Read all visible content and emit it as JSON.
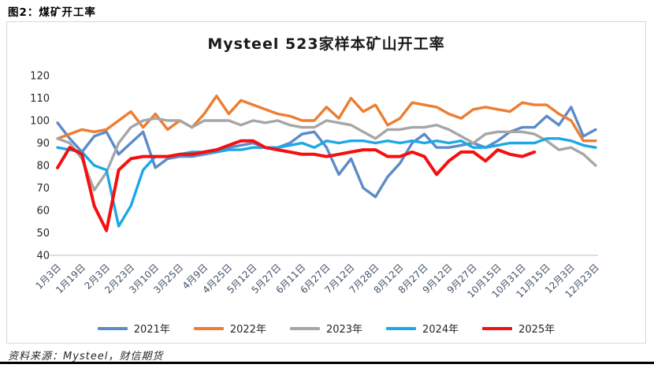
{
  "figure": {
    "caption": "图2：煤矿开工率",
    "source": "资料来源：Mysteel，财信期货"
  },
  "chart_data": {
    "type": "line",
    "title": "Mysteel 523家样本矿山开工率",
    "ylim": [
      40,
      120
    ],
    "y_ticks": [
      120,
      110,
      100,
      90,
      80,
      70,
      60,
      50,
      40
    ],
    "grid": false,
    "legend_position": "bottom",
    "axis_line_color": "#c9c9c9",
    "y_label_color": "#262626",
    "x_label_color": "#44546A",
    "x_labels": [
      "1月3日",
      "1月19日",
      "2月3日",
      "2月23日",
      "3月10日",
      "3月25日",
      "4月9日",
      "4月25日",
      "5月12日",
      "5月27日",
      "6月11日",
      "6月27日",
      "7月12日",
      "7月28日",
      "8月12日",
      "8月27日",
      "9月12日",
      "9月27日",
      "10月15日",
      "10月31日",
      "11月15日",
      "12月3日",
      "12月23日"
    ],
    "points_per_label": 2,
    "series": [
      {
        "name": "2021年",
        "color": "#5C8BC9",
        "values": [
          99,
          92,
          86,
          93,
          95,
          85,
          90,
          95,
          79,
          83,
          84,
          84,
          85,
          86,
          88,
          89,
          90,
          88,
          88,
          90,
          94,
          95,
          88,
          76,
          83,
          70,
          66,
          75,
          81,
          90,
          94,
          88,
          88,
          89,
          90,
          88,
          91,
          95,
          97,
          97,
          102,
          98,
          106,
          93,
          96
        ]
      },
      {
        "name": "2022年",
        "color": "#ED7D31",
        "values": [
          92,
          94,
          96,
          95,
          96,
          100,
          104,
          97,
          103,
          96,
          100,
          97,
          103,
          111,
          103,
          109,
          107,
          105,
          103,
          102,
          100,
          100,
          106,
          101,
          110,
          104,
          107,
          98,
          101,
          108,
          107,
          106,
          103,
          101,
          105,
          106,
          105,
          104,
          108,
          107,
          107,
          103,
          100,
          91,
          91
        ]
      },
      {
        "name": "2023年",
        "color": "#A6A6A6",
        "values": [
          92,
          90,
          83,
          69,
          77,
          90,
          97,
          100,
          101,
          100,
          100,
          97,
          100,
          100,
          100,
          98,
          100,
          99,
          100,
          98,
          97,
          97,
          100,
          99,
          98,
          95,
          92,
          96,
          96,
          97,
          97,
          98,
          96,
          93,
          90,
          94,
          95,
          95,
          95,
          94,
          91,
          87,
          88,
          85,
          80
        ]
      },
      {
        "name": "2024年",
        "color": "#1EA7E6",
        "values": [
          88,
          87,
          86,
          80,
          78,
          53,
          62,
          78,
          84,
          84,
          85,
          86,
          86,
          86,
          87,
          87,
          88,
          88,
          88,
          89,
          90,
          88,
          91,
          90,
          91,
          91,
          90,
          91,
          90,
          91,
          90,
          91,
          90,
          91,
          88,
          88,
          89,
          90,
          90,
          90,
          92,
          92,
          91,
          89,
          88
        ]
      },
      {
        "name": "2025年",
        "color": "#F50F0F",
        "values": [
          79,
          88,
          85,
          62,
          51,
          78,
          83,
          84,
          84,
          84,
          85,
          85,
          86,
          87,
          89,
          91,
          91,
          88,
          87,
          86,
          85,
          85,
          84,
          85,
          86,
          87,
          87,
          84,
          84,
          86,
          84,
          76,
          82,
          86,
          86,
          82,
          87,
          85,
          84,
          86
        ]
      }
    ]
  }
}
